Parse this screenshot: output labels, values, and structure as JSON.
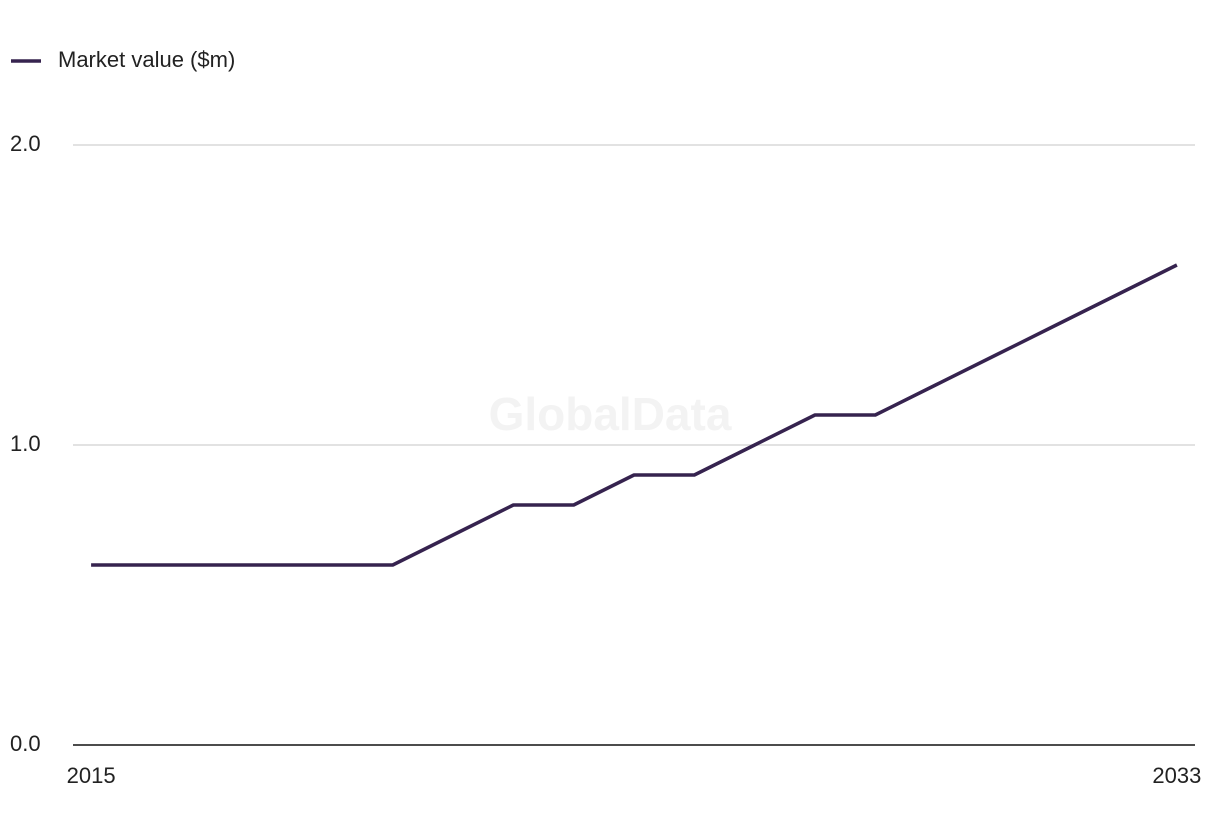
{
  "chart_data": {
    "type": "line",
    "watermark": "GlobalData",
    "x": [
      2015,
      2016,
      2017,
      2018,
      2019,
      2020,
      2021,
      2022,
      2023,
      2024,
      2025,
      2026,
      2027,
      2028,
      2029,
      2030,
      2031,
      2032,
      2033
    ],
    "series": [
      {
        "name": "Market value ($m)",
        "color": "#36234f",
        "values": [
          0.6,
          0.6,
          0.6,
          0.6,
          0.6,
          0.6,
          0.7,
          0.8,
          0.8,
          0.9,
          0.9,
          1.0,
          1.1,
          1.1,
          1.2,
          1.3,
          1.4,
          1.5,
          1.6
        ]
      }
    ],
    "xlim": [
      2014.7,
      2033.3
    ],
    "xticks": [
      2015,
      2033
    ],
    "ylim": [
      0,
      2
    ],
    "yticks": [
      {
        "value": 0,
        "label": "0.0"
      },
      {
        "value": 1,
        "label": "1.0"
      },
      {
        "value": 2,
        "label": "2.0"
      }
    ],
    "grid": true,
    "legend": "top-left"
  }
}
